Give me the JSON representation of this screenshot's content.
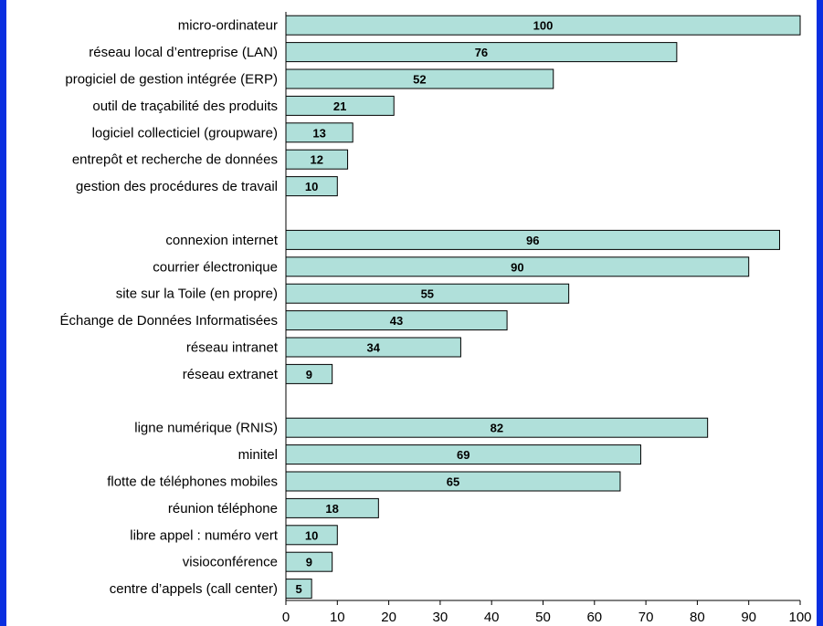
{
  "chart_data": {
    "type": "bar",
    "orientation": "horizontal",
    "xlim": [
      0,
      100
    ],
    "x_ticks": [
      "0",
      "10",
      "20",
      "30",
      "40",
      "50",
      "60",
      "70",
      "80",
      "90",
      "100"
    ],
    "grid": false,
    "bar_color": "#b0e0da",
    "border_color": "#0a2fe0",
    "groups": [
      {
        "categories": [
          "micro-ordinateur",
          "réseau local d’entreprise (LAN)",
          "progiciel de gestion intégrée (ERP)",
          "outil de traçabilité des produits",
          "logiciel collecticiel (groupware)",
          "entrepôt et recherche de données",
          "gestion des procédures de travail"
        ],
        "values": [
          100,
          76,
          52,
          21,
          13,
          12,
          10
        ]
      },
      {
        "categories": [
          "connexion internet",
          "courrier électronique",
          "site sur la Toile (en propre)",
          "Échange de Données Informatisées",
          "réseau intranet",
          "réseau extranet"
        ],
        "values": [
          96,
          90,
          55,
          43,
          34,
          9
        ]
      },
      {
        "categories": [
          "ligne numérique (RNIS)",
          "minitel",
          "flotte de téléphones mobiles",
          "réunion téléphone",
          "libre appel : numéro vert",
          "visioconférence",
          "centre d’appels (call center)"
        ],
        "values": [
          82,
          69,
          65,
          18,
          10,
          9,
          5
        ]
      }
    ]
  }
}
